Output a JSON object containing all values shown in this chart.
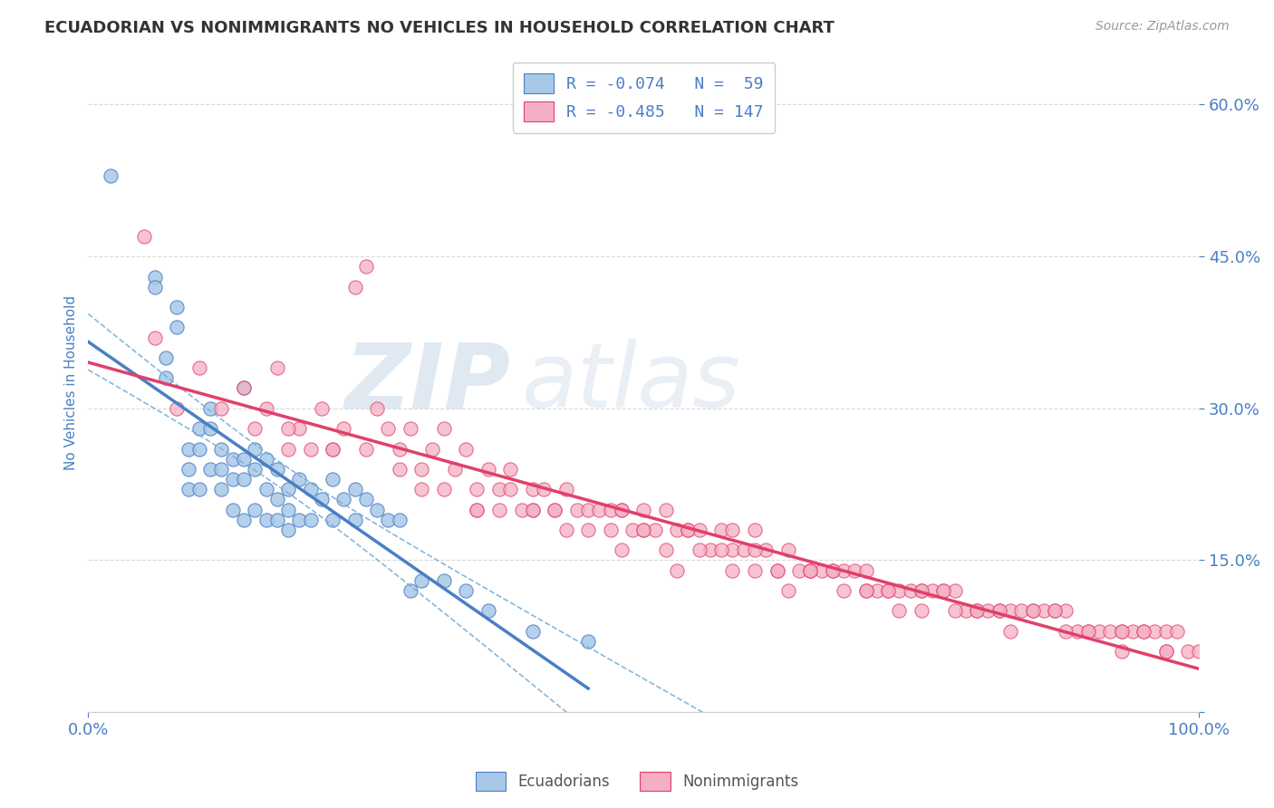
{
  "title": "ECUADORIAN VS NONIMMIGRANTS NO VEHICLES IN HOUSEHOLD CORRELATION CHART",
  "source": "Source: ZipAtlas.com",
  "ylabel": "No Vehicles in Household",
  "xlim": [
    0.0,
    1.0
  ],
  "ylim": [
    0.0,
    0.65
  ],
  "yticks": [
    0.0,
    0.15,
    0.3,
    0.45,
    0.6
  ],
  "ytick_labels": [
    "",
    "15.0%",
    "30.0%",
    "45.0%",
    "60.0%"
  ],
  "xtick_labels": [
    "0.0%",
    "100.0%"
  ],
  "ecuadorians_color": "#a8c8e8",
  "nonimmigrants_color": "#f4afc4",
  "trend_ecu_color": "#4a7fc4",
  "trend_non_color": "#e0406a",
  "ci_ecu_color": "#7ab0d8",
  "legend_R_ecu": "R = -0.074",
  "legend_N_ecu": "N =  59",
  "legend_R_non": "R = -0.485",
  "legend_N_non": "N = 147",
  "background_color": "#ffffff",
  "grid_color": "#d0d0d0",
  "title_color": "#333333",
  "tick_color": "#4a7fc4",
  "watermark_zip": "ZIP",
  "watermark_atlas": "atlas",
  "ecu_x": [
    0.02,
    0.06,
    0.06,
    0.07,
    0.07,
    0.08,
    0.08,
    0.09,
    0.09,
    0.09,
    0.1,
    0.1,
    0.1,
    0.11,
    0.11,
    0.11,
    0.12,
    0.12,
    0.12,
    0.13,
    0.13,
    0.13,
    0.14,
    0.14,
    0.14,
    0.14,
    0.15,
    0.15,
    0.15,
    0.16,
    0.16,
    0.16,
    0.17,
    0.17,
    0.17,
    0.18,
    0.18,
    0.18,
    0.19,
    0.19,
    0.2,
    0.2,
    0.21,
    0.22,
    0.22,
    0.23,
    0.24,
    0.24,
    0.25,
    0.26,
    0.27,
    0.28,
    0.29,
    0.3,
    0.32,
    0.34,
    0.36,
    0.4,
    0.45
  ],
  "ecu_y": [
    0.53,
    0.43,
    0.42,
    0.35,
    0.33,
    0.4,
    0.38,
    0.26,
    0.24,
    0.22,
    0.28,
    0.26,
    0.22,
    0.3,
    0.28,
    0.24,
    0.26,
    0.24,
    0.22,
    0.25,
    0.23,
    0.2,
    0.32,
    0.25,
    0.23,
    0.19,
    0.26,
    0.24,
    0.2,
    0.25,
    0.22,
    0.19,
    0.24,
    0.21,
    0.19,
    0.22,
    0.2,
    0.18,
    0.23,
    0.19,
    0.22,
    0.19,
    0.21,
    0.23,
    0.19,
    0.21,
    0.22,
    0.19,
    0.21,
    0.2,
    0.19,
    0.19,
    0.12,
    0.13,
    0.13,
    0.12,
    0.1,
    0.08,
    0.07
  ],
  "non_x": [
    0.05,
    0.06,
    0.08,
    0.1,
    0.12,
    0.14,
    0.15,
    0.16,
    0.17,
    0.18,
    0.19,
    0.2,
    0.21,
    0.22,
    0.23,
    0.24,
    0.25,
    0.26,
    0.27,
    0.28,
    0.29,
    0.3,
    0.31,
    0.32,
    0.33,
    0.34,
    0.35,
    0.35,
    0.36,
    0.37,
    0.38,
    0.38,
    0.39,
    0.4,
    0.4,
    0.41,
    0.42,
    0.43,
    0.44,
    0.45,
    0.46,
    0.47,
    0.48,
    0.49,
    0.5,
    0.5,
    0.51,
    0.52,
    0.53,
    0.54,
    0.55,
    0.56,
    0.57,
    0.58,
    0.58,
    0.59,
    0.6,
    0.61,
    0.62,
    0.63,
    0.64,
    0.65,
    0.66,
    0.67,
    0.68,
    0.69,
    0.7,
    0.71,
    0.72,
    0.73,
    0.74,
    0.75,
    0.76,
    0.77,
    0.78,
    0.79,
    0.8,
    0.81,
    0.82,
    0.83,
    0.84,
    0.85,
    0.86,
    0.87,
    0.88,
    0.89,
    0.9,
    0.91,
    0.92,
    0.93,
    0.94,
    0.95,
    0.96,
    0.97,
    0.98,
    0.99,
    1.0,
    0.3,
    0.35,
    0.4,
    0.42,
    0.45,
    0.47,
    0.5,
    0.52,
    0.55,
    0.57,
    0.6,
    0.62,
    0.65,
    0.67,
    0.7,
    0.72,
    0.75,
    0.77,
    0.8,
    0.82,
    0.85,
    0.87,
    0.9,
    0.93,
    0.95,
    0.97,
    0.25,
    0.28,
    0.32,
    0.37,
    0.43,
    0.48,
    0.53,
    0.58,
    0.63,
    0.68,
    0.73,
    0.78,
    0.83,
    0.88,
    0.93,
    0.97,
    0.18,
    0.22,
    0.48,
    0.54,
    0.6,
    0.65,
    0.7,
    0.75
  ],
  "non_y": [
    0.47,
    0.37,
    0.3,
    0.34,
    0.3,
    0.32,
    0.28,
    0.3,
    0.34,
    0.26,
    0.28,
    0.26,
    0.3,
    0.26,
    0.28,
    0.42,
    0.44,
    0.3,
    0.28,
    0.26,
    0.28,
    0.24,
    0.26,
    0.28,
    0.24,
    0.26,
    0.22,
    0.2,
    0.24,
    0.22,
    0.24,
    0.22,
    0.2,
    0.22,
    0.2,
    0.22,
    0.2,
    0.22,
    0.2,
    0.2,
    0.2,
    0.2,
    0.2,
    0.18,
    0.2,
    0.18,
    0.18,
    0.2,
    0.18,
    0.18,
    0.18,
    0.16,
    0.18,
    0.16,
    0.18,
    0.16,
    0.18,
    0.16,
    0.14,
    0.16,
    0.14,
    0.14,
    0.14,
    0.14,
    0.14,
    0.14,
    0.14,
    0.12,
    0.12,
    0.12,
    0.12,
    0.12,
    0.12,
    0.12,
    0.12,
    0.1,
    0.1,
    0.1,
    0.1,
    0.1,
    0.1,
    0.1,
    0.1,
    0.1,
    0.1,
    0.08,
    0.08,
    0.08,
    0.08,
    0.08,
    0.08,
    0.08,
    0.08,
    0.08,
    0.08,
    0.06,
    0.06,
    0.22,
    0.2,
    0.2,
    0.2,
    0.18,
    0.18,
    0.18,
    0.16,
    0.16,
    0.16,
    0.14,
    0.14,
    0.14,
    0.14,
    0.12,
    0.12,
    0.12,
    0.12,
    0.1,
    0.1,
    0.1,
    0.1,
    0.08,
    0.08,
    0.08,
    0.06,
    0.26,
    0.24,
    0.22,
    0.2,
    0.18,
    0.16,
    0.14,
    0.14,
    0.12,
    0.12,
    0.1,
    0.1,
    0.08,
    0.08,
    0.06,
    0.06,
    0.28,
    0.26,
    0.2,
    0.18,
    0.16,
    0.14,
    0.12,
    0.1
  ]
}
